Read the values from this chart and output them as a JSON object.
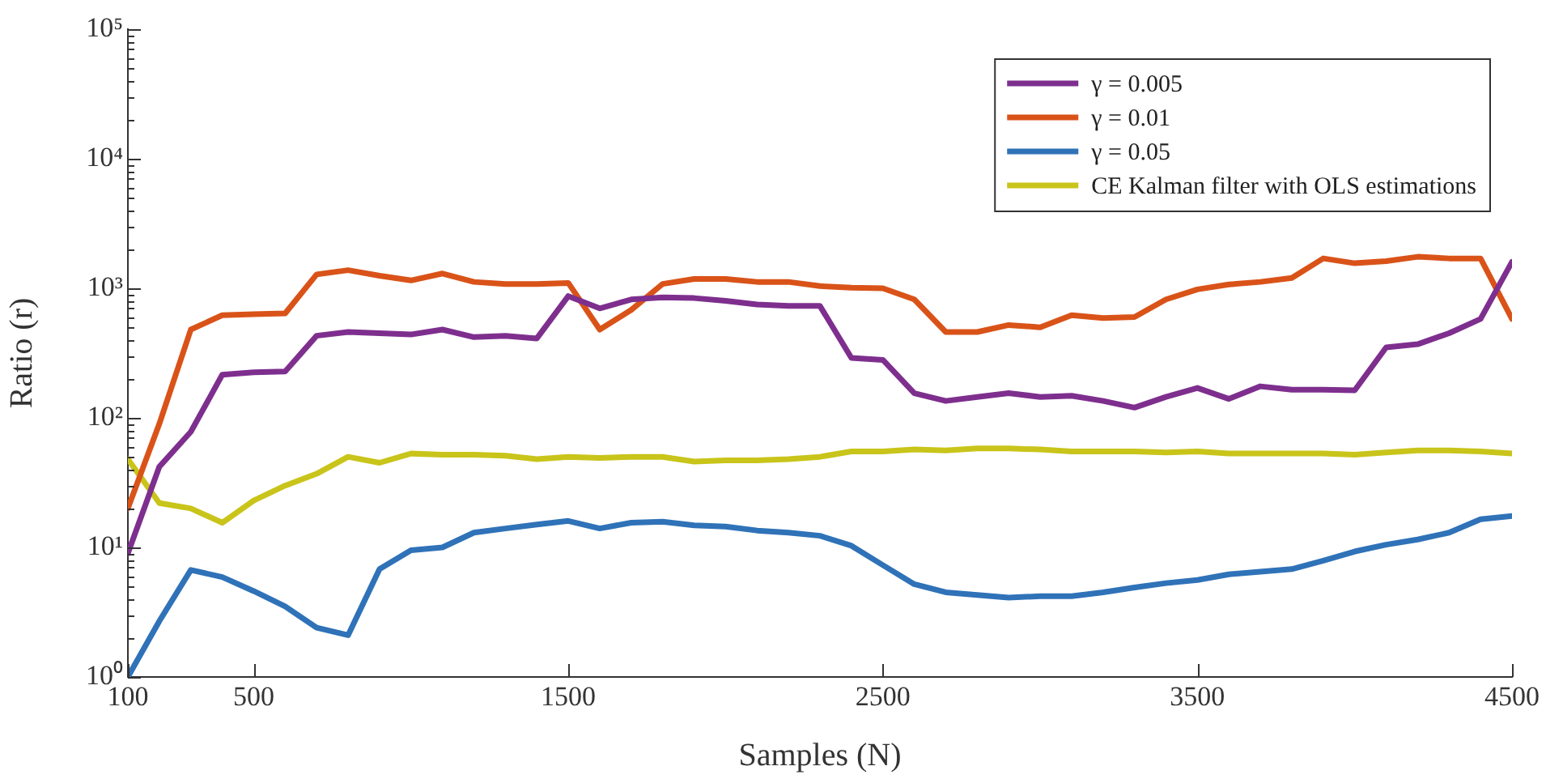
{
  "chart_data": {
    "type": "line",
    "xlabel": "Samples (N)",
    "ylabel": "Ratio (r)",
    "x": [
      100,
      200,
      300,
      400,
      500,
      600,
      700,
      800,
      900,
      1000,
      1100,
      1200,
      1300,
      1400,
      1500,
      1600,
      1700,
      1800,
      1900,
      2000,
      2100,
      2200,
      2300,
      2400,
      2500,
      2600,
      2700,
      2800,
      2900,
      3000,
      3100,
      3200,
      3300,
      3400,
      3500,
      3600,
      3700,
      3800,
      3900,
      4000,
      4100,
      4200,
      4300,
      4400,
      4500
    ],
    "series": [
      {
        "name": "γ = 0.005",
        "color": "#7e2f8e",
        "values": [
          9,
          42,
          78,
          215,
          225,
          228,
          430,
          460,
          450,
          440,
          480,
          420,
          430,
          410,
          870,
          700,
          820,
          850,
          840,
          800,
          750,
          730,
          730,
          290,
          280,
          155,
          135,
          145,
          155,
          145,
          148,
          135,
          120,
          145,
          170,
          140,
          175,
          165,
          165,
          163,
          350,
          370,
          450,
          580,
          1600
        ]
      },
      {
        "name": "γ = 0.01",
        "color": "#d95319",
        "values": [
          20,
          90,
          480,
          620,
          630,
          640,
          1280,
          1380,
          1250,
          1150,
          1300,
          1120,
          1080,
          1080,
          1100,
          480,
          680,
          1080,
          1180,
          1180,
          1120,
          1120,
          1040,
          1010,
          1000,
          820,
          460,
          460,
          520,
          500,
          620,
          590,
          600,
          820,
          980,
          1070,
          1120,
          1200,
          1700,
          1560,
          1620,
          1750,
          1700,
          1700,
          580
        ]
      },
      {
        "name": "γ = 0.05",
        "color": "#2f72b8",
        "values": [
          1,
          2.7,
          6.7,
          5.9,
          4.6,
          3.5,
          2.4,
          2.1,
          6.8,
          9.5,
          10,
          13,
          14,
          15,
          16,
          14,
          15.5,
          15.8,
          14.8,
          14.5,
          13.5,
          13,
          12.3,
          10.3,
          7.3,
          5.2,
          4.5,
          4.3,
          4.1,
          4.2,
          4.2,
          4.5,
          4.9,
          5.3,
          5.6,
          6.2,
          6.5,
          6.8,
          7.9,
          9.3,
          10.5,
          11.5,
          13,
          16.5,
          17.5
        ]
      },
      {
        "name": "CE Kalman filter with OLS estimations",
        "color": "#c9c41a",
        "values": [
          48,
          22,
          20,
          15.5,
          23,
          30,
          37,
          50,
          45,
          53,
          52,
          52,
          51,
          48,
          50,
          49,
          50,
          50,
          46,
          47,
          47,
          48,
          50,
          55,
          55,
          57,
          56,
          58,
          58,
          57,
          55,
          55,
          55,
          54,
          55,
          53,
          53,
          53,
          53,
          52,
          54,
          56,
          56,
          55,
          53
        ]
      }
    ],
    "log": "y",
    "xlim": [
      100,
      4500
    ],
    "xticks": [
      100,
      500,
      1500,
      2500,
      3500,
      4500
    ],
    "ylim": [
      1,
      100000
    ],
    "yticks": [
      {
        "value": 1,
        "label": "10⁰"
      },
      {
        "value": 2,
        "label": null
      },
      {
        "value": 3,
        "label": null
      },
      {
        "value": 4,
        "label": null
      },
      {
        "value": 5,
        "label": null
      },
      {
        "value": 6,
        "label": null
      },
      {
        "value": 7,
        "label": null
      },
      {
        "value": 8,
        "label": null
      },
      {
        "value": 9,
        "label": null
      },
      {
        "value": 10,
        "label": "10¹"
      },
      {
        "value": 20,
        "label": null
      },
      {
        "value": 30,
        "label": null
      },
      {
        "value": 40,
        "label": null
      },
      {
        "value": 50,
        "label": null
      },
      {
        "value": 60,
        "label": null
      },
      {
        "value": 70,
        "label": null
      },
      {
        "value": 80,
        "label": null
      },
      {
        "value": 90,
        "label": null
      },
      {
        "value": 100,
        "label": "10²"
      },
      {
        "value": 200,
        "label": null
      },
      {
        "value": 300,
        "label": null
      },
      {
        "value": 400,
        "label": null
      },
      {
        "value": 500,
        "label": null
      },
      {
        "value": 600,
        "label": null
      },
      {
        "value": 700,
        "label": null
      },
      {
        "value": 800,
        "label": null
      },
      {
        "value": 900,
        "label": null
      },
      {
        "value": 1000,
        "label": "10³"
      },
      {
        "value": 2000,
        "label": null
      },
      {
        "value": 3000,
        "label": null
      },
      {
        "value": 4000,
        "label": null
      },
      {
        "value": 5000,
        "label": null
      },
      {
        "value": 6000,
        "label": null
      },
      {
        "value": 7000,
        "label": null
      },
      {
        "value": 8000,
        "label": null
      },
      {
        "value": 9000,
        "label": null
      },
      {
        "value": 10000,
        "label": "10⁴"
      },
      {
        "value": 20000,
        "label": null
      },
      {
        "value": 30000,
        "label": null
      },
      {
        "value": 40000,
        "label": null
      },
      {
        "value": 50000,
        "label": null
      },
      {
        "value": 60000,
        "label": null
      },
      {
        "value": 70000,
        "label": null
      },
      {
        "value": 80000,
        "label": null
      },
      {
        "value": 90000,
        "label": null
      },
      {
        "value": 100000,
        "label": "10⁵"
      }
    ],
    "grid": false,
    "legend": "top right",
    "marker": "none",
    "line_style": "solid"
  }
}
